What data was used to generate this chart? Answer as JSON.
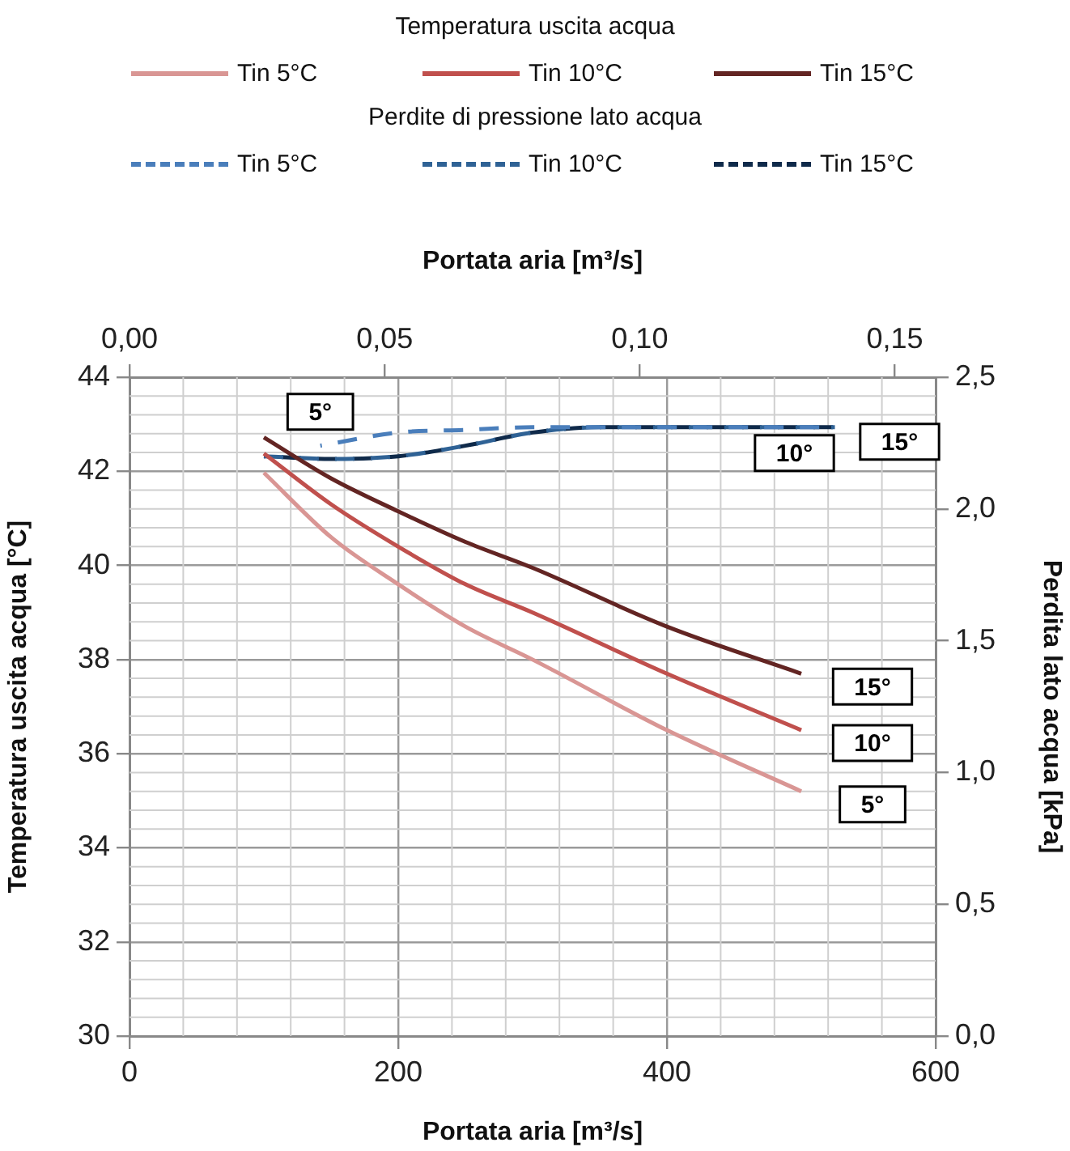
{
  "chart_data": {
    "type": "line",
    "xlabel": "Portata aria [m³/s]",
    "x2label": "Portata aria [m³/s]",
    "ylabel": "Temperatura uscita acqua [°C]",
    "y2label": "Perdita lato acqua [kPa]",
    "legend_title": [
      "Temperatura uscita acqua",
      "Perdite di pressione lato acqua"
    ],
    "xlim": [
      0,
      600
    ],
    "xticks": [
      0,
      200,
      400,
      600
    ],
    "x2lim": [
      0,
      0.158
    ],
    "x2ticks": [
      {
        "value": 0,
        "label": "0,00"
      },
      {
        "value": 0.05,
        "label": "0,05"
      },
      {
        "value": 0.1,
        "label": "0,10"
      },
      {
        "value": 0.15,
        "label": "0,15"
      }
    ],
    "ylim": [
      30,
      44
    ],
    "yticks": [
      30,
      32,
      34,
      36,
      38,
      40,
      42,
      44
    ],
    "y2lim": [
      0,
      2.5
    ],
    "y2ticks": [
      {
        "value": 0,
        "label": "0,0"
      },
      {
        "value": 0.5,
        "label": "0,5"
      },
      {
        "value": 1,
        "label": "1,0"
      },
      {
        "value": 1.5,
        "label": "1,5"
      },
      {
        "value": 2,
        "label": "2,0"
      },
      {
        "value": 2.5,
        "label": "2,5"
      }
    ],
    "grid": true,
    "legend": "top",
    "marker": "none",
    "line_style": "solid",
    "series": [
      {
        "name": "Tin 5°C",
        "color": "#d99694",
        "x": [
          100,
          150,
          200,
          250,
          300,
          400,
          500
        ],
        "values": [
          41.97,
          40.6,
          39.6,
          38.7,
          38.0,
          36.5,
          35.2
        ]
      },
      {
        "name": "Tin 10°C",
        "color": "#c0504d",
        "x": [
          100,
          150,
          200,
          250,
          300,
          400,
          500
        ],
        "values": [
          42.38,
          41.3,
          40.4,
          39.6,
          39.0,
          37.7,
          36.5
        ]
      },
      {
        "name": "Tin 15°C",
        "color": "#632523",
        "x": [
          100,
          150,
          200,
          250,
          300,
          400,
          500
        ],
        "values": [
          42.72,
          41.85,
          41.15,
          40.5,
          39.95,
          38.7,
          37.7
        ]
      },
      {
        "name": "Tin 5°C",
        "color": "#4a7ebb",
        "axis": "y2",
        "line_style": "dashed",
        "x": [
          142,
          200,
          250,
          300,
          525
        ],
        "values": [
          2.24,
          2.29,
          2.3,
          2.31,
          2.31
        ]
      },
      {
        "name": "Tin 10°C",
        "color": "#2f6295",
        "axis": "y2",
        "line_style": "dashed",
        "x": [
          100,
          150,
          200,
          250,
          300,
          350,
          400,
          525
        ],
        "values": [
          2.2,
          2.19,
          2.2,
          2.24,
          2.29,
          2.31,
          2.31,
          2.31
        ]
      },
      {
        "name": "Tin 15°C",
        "color": "#0f2a4a",
        "axis": "y2",
        "line_style": "dashed",
        "x": [
          100,
          150,
          200,
          250,
          300,
          350,
          400,
          525
        ],
        "values": [
          2.2,
          2.19,
          2.2,
          2.24,
          2.29,
          2.31,
          2.31,
          2.31
        ]
      }
    ],
    "annotations": [
      "5°",
      "10°",
      "15°",
      "5°",
      "10°",
      "15°"
    ]
  }
}
